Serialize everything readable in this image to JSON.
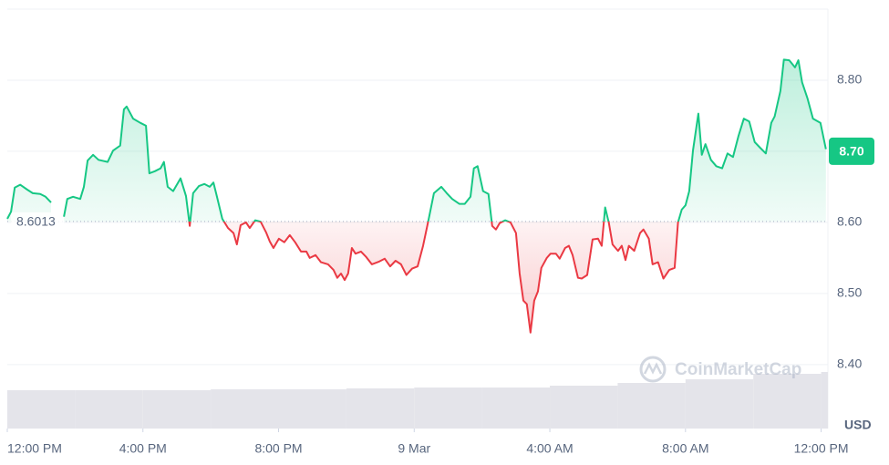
{
  "chart_data": {
    "type": "line",
    "x": [
      0,
      0.11,
      0.22,
      0.38,
      0.59,
      0.75,
      0.97,
      1.13,
      1.29,
      1.5,
      1.67,
      1.77,
      1.94,
      2.15,
      2.26,
      2.37,
      2.53,
      2.69,
      2.96,
      3.12,
      3.33,
      3.44,
      3.52,
      3.71,
      3.92,
      4.09,
      4.19,
      4.35,
      4.52,
      4.62,
      4.73,
      4.89,
      5.11,
      5.27,
      5.38,
      5.48,
      5.65,
      5.81,
      5.97,
      6.08,
      6.18,
      6.34,
      6.51,
      6.67,
      6.77,
      6.88,
      7.04,
      7.15,
      7.31,
      7.47,
      7.63,
      7.74,
      7.85,
      8.01,
      8.17,
      8.33,
      8.49,
      8.66,
      8.82,
      8.92,
      9.09,
      9.25,
      9.46,
      9.62,
      9.73,
      9.84,
      9.95,
      10.05,
      10.16,
      10.27,
      10.43,
      10.59,
      10.75,
      10.97,
      11.13,
      11.29,
      11.45,
      11.61,
      11.77,
      11.94,
      12.1,
      12.26,
      12.42,
      12.58,
      12.8,
      12.96,
      13.12,
      13.33,
      13.49,
      13.66,
      13.76,
      13.87,
      14.03,
      14.19,
      14.3,
      14.41,
      14.52,
      14.68,
      14.84,
      15,
      15.11,
      15.22,
      15.32,
      15.43,
      15.54,
      15.65,
      15.75,
      15.91,
      16.02,
      16.18,
      16.29,
      16.45,
      16.56,
      16.67,
      16.83,
      16.94,
      17.1,
      17.26,
      17.42,
      17.53,
      17.63,
      17.74,
      17.85,
      18.01,
      18.12,
      18.23,
      18.33,
      18.49,
      18.66,
      18.76,
      18.92,
      19.03,
      19.19,
      19.35,
      19.52,
      19.68,
      19.78,
      19.89,
      20,
      20.11,
      20.22,
      20.38,
      20.48,
      20.59,
      20.75,
      20.91,
      21.08,
      21.24,
      21.4,
      21.56,
      21.72,
      21.88,
      22.04,
      22.2,
      22.37,
      22.53,
      22.63,
      22.8,
      22.9,
      23.06,
      23.23,
      23.33,
      23.44,
      23.6,
      23.76,
      23.98,
      24.14
    ],
    "values": [
      8.605,
      8.615,
      8.649,
      8.653,
      8.646,
      8.641,
      8.64,
      8.636,
      8.628,
      null,
      8.608,
      8.633,
      8.636,
      8.633,
      8.65,
      8.687,
      8.695,
      8.688,
      8.685,
      8.701,
      8.708,
      8.759,
      8.763,
      8.746,
      8.74,
      8.736,
      8.669,
      8.672,
      8.676,
      8.685,
      8.65,
      8.644,
      8.662,
      8.637,
      8.595,
      8.641,
      8.651,
      8.654,
      8.65,
      8.656,
      8.637,
      8.605,
      8.592,
      8.585,
      8.569,
      8.596,
      8.6,
      8.592,
      8.603,
      8.601,
      8.586,
      8.573,
      8.564,
      8.577,
      8.572,
      8.582,
      8.572,
      8.559,
      8.559,
      8.55,
      8.554,
      8.544,
      8.541,
      8.533,
      8.522,
      8.528,
      8.519,
      8.528,
      8.564,
      8.556,
      8.559,
      8.551,
      8.541,
      8.545,
      8.549,
      8.538,
      8.546,
      8.541,
      8.526,
      8.535,
      8.538,
      8.567,
      8.603,
      8.641,
      8.65,
      8.641,
      8.633,
      8.626,
      8.626,
      8.636,
      8.676,
      8.679,
      8.644,
      8.64,
      8.595,
      8.59,
      8.599,
      8.603,
      8.6,
      8.585,
      8.528,
      8.49,
      8.485,
      8.445,
      8.49,
      8.503,
      8.536,
      8.55,
      8.556,
      8.556,
      8.549,
      8.564,
      8.567,
      8.554,
      8.522,
      8.521,
      8.526,
      8.576,
      8.577,
      8.567,
      8.621,
      8.599,
      8.569,
      8.56,
      8.567,
      8.547,
      8.567,
      8.56,
      8.585,
      8.59,
      8.577,
      8.541,
      8.544,
      8.521,
      8.533,
      8.536,
      8.6,
      8.618,
      8.624,
      8.644,
      8.701,
      8.753,
      8.695,
      8.71,
      8.688,
      8.679,
      8.676,
      8.697,
      8.692,
      8.721,
      8.746,
      8.742,
      8.713,
      8.705,
      8.697,
      8.74,
      8.749,
      8.785,
      8.829,
      8.828,
      8.818,
      8.828,
      8.797,
      8.774,
      8.746,
      8.74,
      8.703
    ],
    "baseline": 8.6013,
    "last_price": {
      "value": 8.7,
      "label": "8.70"
    },
    "up_color": "#16c784",
    "down_color": "#ea3943",
    "xlim": [
      0,
      24.2
    ],
    "ylim": [
      8.31,
      8.9
    ],
    "xticks": [
      {
        "value": 0,
        "label": "12:00 PM"
      },
      {
        "value": 4,
        "label": "4:00 PM"
      },
      {
        "value": 8,
        "label": "8:00 PM"
      },
      {
        "value": 12,
        "label": "9 Mar"
      },
      {
        "value": 16,
        "label": "4:00 AM"
      },
      {
        "value": 20,
        "label": "8:00 AM"
      },
      {
        "value": 24,
        "label": "12:00 PM"
      }
    ],
    "yticks": [
      {
        "value": 8.4,
        "label": "8.40"
      },
      {
        "value": 8.5,
        "label": "8.50"
      },
      {
        "value": 8.6,
        "label": "8.60"
      },
      {
        "value": 8.7,
        "label": "8.70"
      },
      {
        "value": 8.8,
        "label": "8.80"
      }
    ],
    "grid": true,
    "unit_label": "USD",
    "watermark": "CoinMarketCap",
    "volume": {
      "x": [
        0,
        2,
        4,
        6,
        8,
        10,
        12,
        14,
        16,
        18,
        20,
        22,
        24
      ],
      "values": [
        42,
        42,
        42,
        43,
        43,
        44,
        45,
        45,
        47,
        50,
        54,
        60,
        62
      ],
      "lim": [
        0,
        100
      ],
      "color": "#e4e4ea"
    }
  }
}
